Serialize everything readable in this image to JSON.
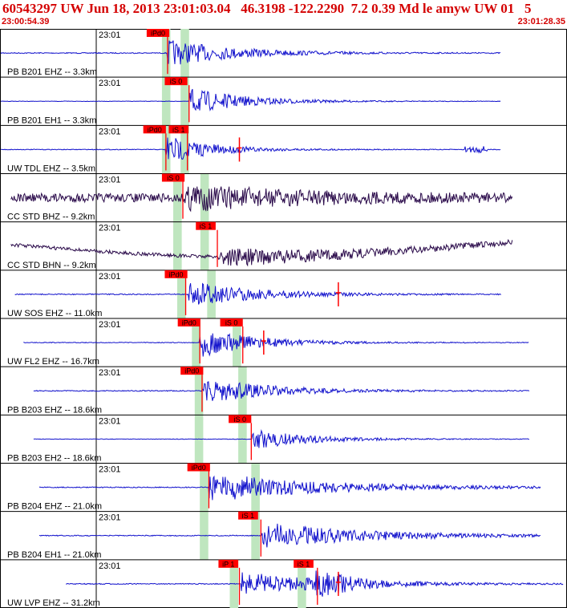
{
  "header": {
    "title": "60543297 UW Jun 18, 2013 23:01:03.04   46.3198 -122.2290  7.2 0.39 Md le amyw UW 01   5",
    "time_start": "23:00:54.39",
    "time_end": "23:01:28.35"
  },
  "colors": {
    "title": "#d40000",
    "trace_blue": "#1111cc",
    "trace_dark": "#2a0a4a",
    "pick": "#ff0000",
    "pick_window": "#bfe6bf",
    "grid": "#000000"
  },
  "chart_data": {
    "type": "line",
    "title": "60543297 UW Jun 18, 2013 23:01:03.04   46.3198 -122.2290  7.2 0.39 Md le amyw UW 01   5",
    "x_range": [
      "23:00:54.39",
      "23:01:28.35"
    ],
    "minute_label": "23:01",
    "series": [
      {
        "name": "PB B201 EHZ -- 3.3km",
        "color": "blue",
        "start": 0.0,
        "end": 0.885,
        "onset": 0.295,
        "amp": 0.55,
        "noise": 0.02,
        "decay": 0.12,
        "picks": [
          {
            "label": "iPd0",
            "pos": 0.295,
            "label_pos": 0.258,
            "label_width": 0.04
          }
        ],
        "windows": [
          [
            0.285,
            0.3
          ],
          [
            0.318,
            0.333
          ]
        ]
      },
      {
        "name": "PB B201 EH1 -- 3.3km",
        "color": "blue",
        "start": 0.0,
        "end": 0.885,
        "onset": 0.333,
        "amp": 0.55,
        "noise": 0.01,
        "decay": 0.1,
        "picks": [
          {
            "label": "iS 0",
            "pos": 0.333,
            "label_pos": 0.29,
            "label_width": 0.04
          }
        ],
        "windows": [
          [
            0.285,
            0.3
          ],
          [
            0.318,
            0.333
          ]
        ]
      },
      {
        "name": "UW TDL EHZ -- 3.5km",
        "color": "blue",
        "start": 0.0,
        "end": 0.885,
        "onset": 0.292,
        "amp": 0.6,
        "noise": 0.015,
        "decay": 0.08,
        "picks": [
          {
            "label": "iPd0",
            "pos": 0.292,
            "label_pos": 0.252,
            "label_width": 0.04
          },
          {
            "label": "iS 1",
            "pos": 0.33,
            "label_pos": 0.297,
            "label_width": 0.035
          },
          {
            "label": "",
            "pos": 0.422
          }
        ],
        "windows": [
          [
            0.285,
            0.3
          ],
          [
            0.318,
            0.333
          ]
        ],
        "burst": 0.82
      },
      {
        "name": "CC STD BHZ -- 9.2km",
        "color": "dark",
        "start": 0.018,
        "end": 0.905,
        "onset": 0.325,
        "amp": 0.45,
        "noise": 0.18,
        "decay": 0.2,
        "picks": [
          {
            "label": "iS 0",
            "pos": 0.322,
            "label_pos": 0.285,
            "label_width": 0.04
          }
        ],
        "windows": [
          [
            0.305,
            0.32
          ],
          [
            0.353,
            0.368
          ]
        ]
      },
      {
        "name": "CC STD BHN -- 9.2km",
        "color": "dark",
        "start": 0.018,
        "end": 0.905,
        "onset": 0.385,
        "amp": 0.35,
        "noise": 0.07,
        "decay": 0.25,
        "picks": [
          {
            "label": "iS 1",
            "pos": 0.383,
            "label_pos": 0.345,
            "label_width": 0.035
          }
        ],
        "windows": [
          [
            0.305,
            0.32
          ],
          [
            0.353,
            0.368
          ]
        ],
        "drift": true
      },
      {
        "name": "UW SOS EHZ -- 11.0km",
        "color": "blue",
        "start": 0.025,
        "end": 0.885,
        "onset": 0.33,
        "amp": 0.55,
        "noise": 0.02,
        "decay": 0.12,
        "picks": [
          {
            "label": "iPd0",
            "pos": 0.327,
            "label_pos": 0.29,
            "label_width": 0.04
          },
          {
            "label": "",
            "pos": 0.597
          }
        ],
        "windows": [
          [
            0.312,
            0.327
          ],
          [
            0.365,
            0.38
          ]
        ]
      },
      {
        "name": "UW FL2 EHZ -- 16.7km",
        "color": "blue",
        "start": 0.04,
        "end": 0.935,
        "onset": 0.352,
        "amp": 0.6,
        "noise": 0.015,
        "decay": 0.1,
        "picks": [
          {
            "label": "iPd0",
            "pos": 0.352,
            "label_pos": 0.313,
            "label_width": 0.04
          },
          {
            "label": "iS 0",
            "pos": 0.428,
            "label_pos": 0.388,
            "label_width": 0.04
          },
          {
            "label": "",
            "pos": 0.465
          }
        ],
        "windows": [
          [
            0.338,
            0.353
          ],
          [
            0.41,
            0.425
          ]
        ]
      },
      {
        "name": "PB B203 EHZ -- 18.6km",
        "color": "blue",
        "start": 0.058,
        "end": 0.935,
        "onset": 0.356,
        "amp": 0.55,
        "noise": 0.02,
        "decay": 0.12,
        "picks": [
          {
            "label": "iPd0",
            "pos": 0.356,
            "label_pos": 0.318,
            "label_width": 0.04
          }
        ],
        "windows": [
          [
            0.343,
            0.358
          ],
          [
            0.42,
            0.435
          ]
        ]
      },
      {
        "name": "PB B203 EH2 -- 18.6km",
        "color": "blue",
        "start": 0.058,
        "end": 0.935,
        "onset": 0.445,
        "amp": 0.45,
        "noise": 0.01,
        "decay": 0.1,
        "picks": [
          {
            "label": "iS 0",
            "pos": 0.443,
            "label_pos": 0.403,
            "label_width": 0.04
          }
        ],
        "windows": [
          [
            0.343,
            0.358
          ],
          [
            0.42,
            0.435
          ]
        ]
      },
      {
        "name": "PB B204 EHZ -- 21.0km",
        "color": "blue",
        "start": 0.068,
        "end": 0.955,
        "onset": 0.368,
        "amp": 0.6,
        "noise": 0.02,
        "decay": 0.2,
        "picks": [
          {
            "label": "iPd0",
            "pos": 0.368,
            "label_pos": 0.33,
            "label_width": 0.04
          }
        ],
        "windows": [
          [
            0.352,
            0.367
          ],
          [
            0.443,
            0.458
          ]
        ]
      },
      {
        "name": "PB B204 EH1 -- 21.0km",
        "color": "blue",
        "start": 0.068,
        "end": 0.955,
        "onset": 0.462,
        "amp": 0.55,
        "noise": 0.02,
        "decay": 0.18,
        "picks": [
          {
            "label": "iS 1",
            "pos": 0.46,
            "label_pos": 0.42,
            "label_width": 0.035
          }
        ],
        "windows": [
          [
            0.352,
            0.367
          ],
          [
            0.443,
            0.458
          ]
        ]
      },
      {
        "name": "UW LVP EHZ -- 31.2km",
        "color": "blue",
        "start": 0.115,
        "end": 0.995,
        "onset": 0.425,
        "amp": 0.5,
        "noise": 0.02,
        "decay": 0.15,
        "picks": [
          {
            "label": "iP 1",
            "pos": 0.422,
            "label_pos": 0.385,
            "label_width": 0.035
          },
          {
            "label": "iS 1",
            "pos": 0.56,
            "label_pos": 0.518,
            "label_width": 0.035
          },
          {
            "label": "",
            "pos": 0.597
          }
        ],
        "windows": [
          [
            0.405,
            0.42
          ],
          [
            0.525,
            0.54
          ]
        ],
        "second_onset": 0.555
      }
    ]
  }
}
